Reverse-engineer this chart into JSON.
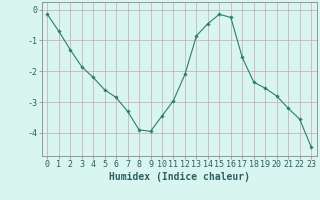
{
  "x": [
    0,
    1,
    2,
    3,
    4,
    5,
    6,
    7,
    8,
    9,
    10,
    11,
    12,
    13,
    14,
    15,
    16,
    17,
    18,
    19,
    20,
    21,
    22,
    23
  ],
  "y": [
    -0.15,
    -0.7,
    -1.3,
    -1.85,
    -2.2,
    -2.6,
    -2.85,
    -3.3,
    -3.9,
    -3.95,
    -3.45,
    -2.95,
    -2.1,
    -0.85,
    -0.45,
    -0.15,
    -0.25,
    -1.55,
    -2.35,
    -2.55,
    -2.8,
    -3.2,
    -3.55,
    -4.45
  ],
  "line_color": "#2e7d6e",
  "marker": "D",
  "markersize": 1.8,
  "linewidth": 0.8,
  "bg_color": "#d8f5f0",
  "grid_color_v": "#c8a8a8",
  "grid_color_h": "#c8a8a8",
  "xlabel": "Humidex (Indice chaleur)",
  "xlabel_fontsize": 7,
  "yticks": [
    0,
    -1,
    -2,
    -3,
    -4
  ],
  "xtick_labels": [
    "0",
    "1",
    "2",
    "3",
    "4",
    "5",
    "6",
    "7",
    "8",
    "9",
    "10",
    "11",
    "12",
    "13",
    "14",
    "15",
    "16",
    "17",
    "18",
    "19",
    "20",
    "21",
    "22",
    "23"
  ],
  "ylim": [
    -4.75,
    0.25
  ],
  "xlim": [
    -0.5,
    23.5
  ],
  "tick_fontsize": 6,
  "spine_color": "#888888"
}
